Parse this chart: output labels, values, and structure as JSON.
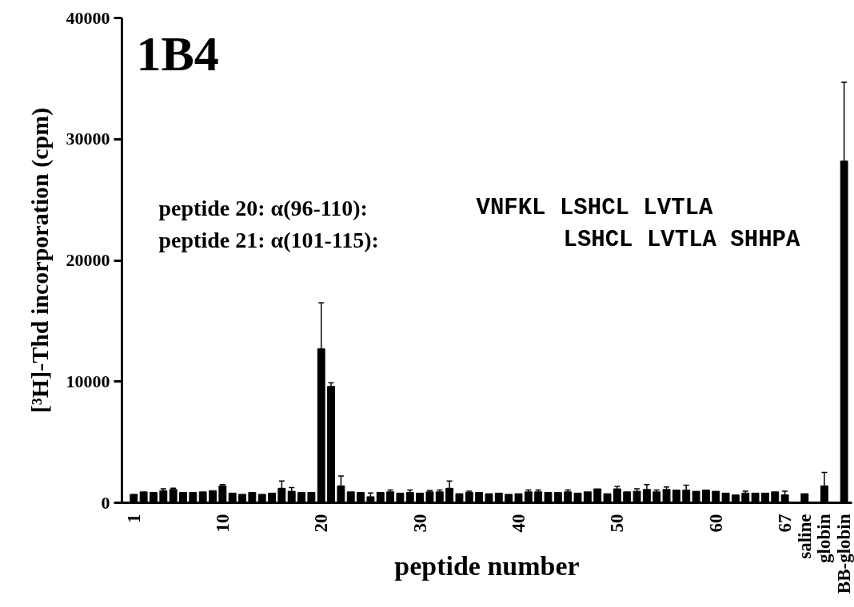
{
  "chart_data": {
    "type": "bar",
    "title": "1B4",
    "xlabel": "peptide number",
    "ylabel": "[³H]-Thd incorporation (cpm)",
    "categories": [
      "1",
      null,
      null,
      null,
      null,
      null,
      null,
      null,
      null,
      "10",
      null,
      null,
      null,
      null,
      null,
      null,
      null,
      null,
      null,
      "20",
      null,
      null,
      null,
      null,
      null,
      null,
      null,
      null,
      null,
      "30",
      null,
      null,
      null,
      null,
      null,
      null,
      null,
      null,
      null,
      "40",
      null,
      null,
      null,
      null,
      null,
      null,
      null,
      null,
      null,
      "50",
      null,
      null,
      null,
      null,
      null,
      null,
      null,
      null,
      null,
      "60",
      null,
      null,
      null,
      null,
      null,
      null,
      "67",
      null,
      "saline",
      null,
      "globin",
      null,
      "BB-globin"
    ],
    "values": [
      700,
      900,
      850,
      1000,
      1100,
      850,
      850,
      900,
      1000,
      1400,
      800,
      700,
      850,
      700,
      800,
      1200,
      950,
      850,
      850,
      12700,
      9600,
      1400,
      900,
      850,
      500,
      850,
      900,
      800,
      850,
      800,
      900,
      900,
      1200,
      750,
      850,
      850,
      750,
      800,
      700,
      750,
      900,
      900,
      850,
      850,
      900,
      800,
      900,
      1150,
      750,
      1150,
      900,
      950,
      1100,
      900,
      1100,
      1050,
      1050,
      950,
      1050,
      950,
      800,
      650,
      800,
      800,
      800,
      900,
      650,
      null,
      750,
      null,
      1400,
      null,
      28200
    ],
    "errors": [
      null,
      null,
      null,
      [
        1000,
        1150
      ],
      [
        1100,
        1200
      ],
      null,
      null,
      null,
      null,
      [
        1400,
        1500
      ],
      null,
      null,
      null,
      null,
      null,
      [
        1200,
        1800
      ],
      [
        950,
        1250
      ],
      null,
      null,
      [
        12700,
        16500
      ],
      [
        9600,
        9900
      ],
      [
        1400,
        2200
      ],
      null,
      null,
      [
        500,
        800
      ],
      null,
      [
        900,
        1050
      ],
      null,
      [
        850,
        1050
      ],
      null,
      [
        900,
        1000
      ],
      [
        900,
        1050
      ],
      [
        1200,
        1800
      ],
      null,
      [
        850,
        950
      ],
      null,
      null,
      null,
      null,
      null,
      [
        900,
        1050
      ],
      [
        900,
        1050
      ],
      null,
      null,
      [
        900,
        1050
      ],
      null,
      null,
      null,
      null,
      [
        1150,
        1350
      ],
      null,
      [
        950,
        1150
      ],
      [
        1100,
        1500
      ],
      [
        900,
        1050
      ],
      [
        1100,
        1300
      ],
      null,
      [
        1050,
        1450
      ],
      null,
      null,
      null,
      null,
      null,
      [
        800,
        950
      ],
      null,
      null,
      null,
      [
        650,
        950
      ],
      null,
      null,
      null,
      [
        1400,
        2500
      ],
      null,
      [
        28200,
        34700
      ]
    ],
    "color": "#000000",
    "ylim": [
      0,
      40000
    ],
    "yticks": [
      0,
      10000,
      20000,
      30000,
      40000
    ],
    "annotations": [
      "peptide 20: α(96-110):",
      "VNFKL LSHCL LVTLA",
      "peptide 21: α(101-115):",
      "LSHCL LVTLA SHHPA"
    ]
  }
}
